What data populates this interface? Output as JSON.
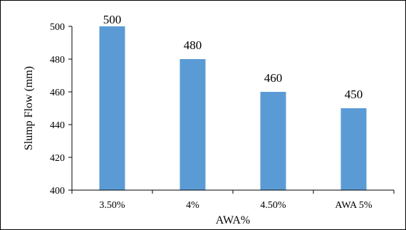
{
  "chart_data": {
    "type": "bar",
    "categories": [
      "3.50%",
      "4%",
      "4.50%",
      "AWA 5%"
    ],
    "values": [
      500,
      480,
      460,
      450
    ],
    "data_labels": [
      "500",
      "480",
      "460",
      "450"
    ],
    "title": "",
    "xlabel": "AWA%",
    "ylabel": "Slump Flow (mm)",
    "ylim": [
      400,
      500
    ],
    "yticks": [
      400,
      420,
      440,
      460,
      480,
      500
    ],
    "grid": false,
    "legend": "none",
    "bar_color": "#5b9bd5",
    "axis_color": "#000000"
  }
}
